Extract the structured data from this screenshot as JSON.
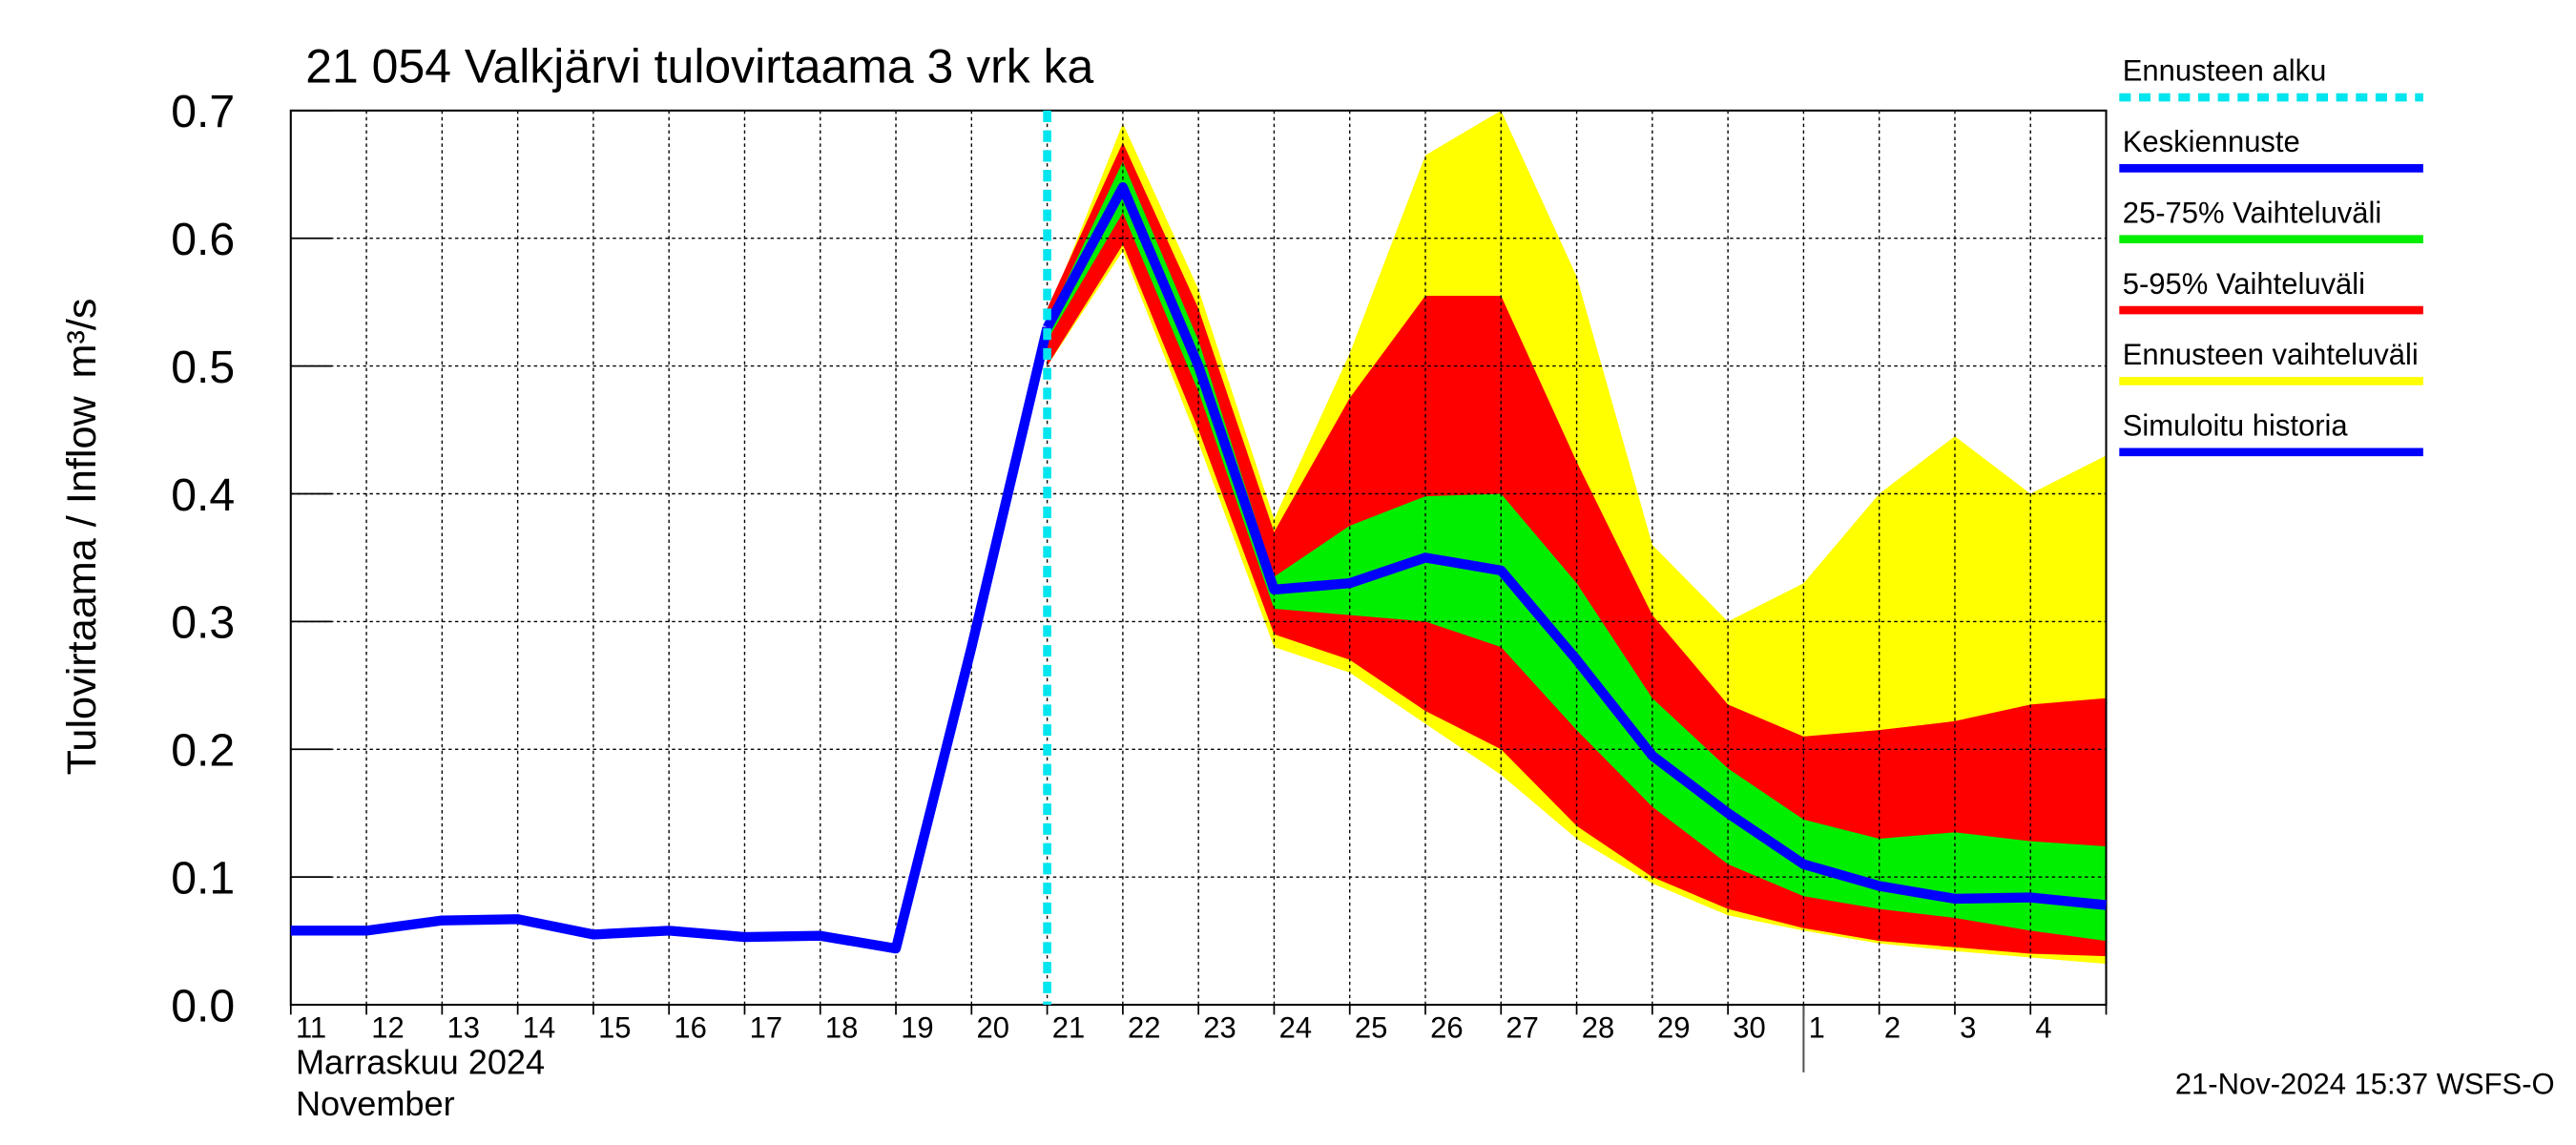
{
  "chart_data": {
    "type": "band",
    "title": "21 054 Valkjärvi tulovirtaama 3 vrk ka",
    "y_label": "Tulovirtaama / Inflow",
    "y_unit": "m³/s",
    "month_label": "Marraskuu 2024",
    "month_label_en": "November",
    "footer": "21-Nov-2024 15:37 WSFS-O",
    "x": [
      "2024-11-11",
      "2024-11-12",
      "2024-11-13",
      "2024-11-14",
      "2024-11-15",
      "2024-11-16",
      "2024-11-17",
      "2024-11-18",
      "2024-11-19",
      "2024-11-20",
      "2024-11-21",
      "2024-11-22",
      "2024-11-23",
      "2024-11-24",
      "2024-11-25",
      "2024-11-26",
      "2024-11-27",
      "2024-11-28",
      "2024-11-29",
      "2024-11-30",
      "2024-12-01",
      "2024-12-02",
      "2024-12-03",
      "2024-12-04",
      "2024-12-05"
    ],
    "xtick_labels": [
      "11",
      "12",
      "13",
      "14",
      "15",
      "16",
      "17",
      "18",
      "19",
      "20",
      "21",
      "22",
      "23",
      "24",
      "25",
      "26",
      "27",
      "28",
      "29",
      "30",
      "1",
      "2",
      "3",
      "4"
    ],
    "xlim": [
      "2024-11-11",
      "2024-12-05"
    ],
    "month_separator": "2024-12-01",
    "forecast_start": {
      "name": "Ennusteen alku",
      "color": "#00e5ee",
      "x": "2024-11-21"
    },
    "ylim": [
      0,
      0.7
    ],
    "yticks": [
      {
        "value": 0,
        "label": "0.0"
      },
      0.1,
      0.2,
      0.3,
      0.4,
      0.5,
      0.6,
      0.7
    ],
    "grid": true,
    "legend": "right",
    "bands": [
      {
        "name": "Ennusteen vaihteluväli",
        "color": "#ffff00",
        "upper": [
          null,
          null,
          null,
          null,
          null,
          null,
          null,
          null,
          null,
          null,
          0.54,
          0.69,
          0.56,
          0.38,
          0.51,
          0.665,
          0.7,
          0.57,
          0.36,
          0.3,
          0.33,
          0.4,
          0.445,
          0.4,
          0.43
        ],
        "lower": [
          null,
          null,
          null,
          null,
          null,
          null,
          null,
          null,
          null,
          null,
          0.5,
          0.59,
          0.44,
          0.28,
          0.26,
          0.22,
          0.18,
          0.13,
          0.095,
          0.07,
          0.058,
          0.048,
          0.042,
          0.037,
          0.032
        ]
      },
      {
        "name": "5-95% Vaihteluväli",
        "color": "#ff0000",
        "upper": [
          null,
          null,
          null,
          null,
          null,
          null,
          null,
          null,
          null,
          null,
          0.545,
          0.675,
          0.545,
          0.37,
          0.475,
          0.555,
          0.555,
          0.425,
          0.305,
          0.235,
          0.21,
          0.215,
          0.222,
          0.235,
          0.24
        ],
        "lower": [
          null,
          null,
          null,
          null,
          null,
          null,
          null,
          null,
          null,
          null,
          0.5,
          0.595,
          0.45,
          0.29,
          0.27,
          0.23,
          0.2,
          0.14,
          0.1,
          0.075,
          0.06,
          0.05,
          0.045,
          0.04,
          0.038
        ]
      },
      {
        "name": "25-75% Vaihteluväli",
        "color": "#00ee00",
        "upper": [
          null,
          null,
          null,
          null,
          null,
          null,
          null,
          null,
          null,
          null,
          0.535,
          0.66,
          0.52,
          0.335,
          0.375,
          0.398,
          0.4,
          0.33,
          0.24,
          0.185,
          0.145,
          0.13,
          0.135,
          0.128,
          0.124
        ],
        "lower": [
          null,
          null,
          null,
          null,
          null,
          null,
          null,
          null,
          null,
          null,
          0.52,
          0.62,
          0.48,
          0.31,
          0.305,
          0.3,
          0.28,
          0.215,
          0.155,
          0.11,
          0.085,
          0.075,
          0.068,
          0.058,
          0.05
        ]
      }
    ],
    "series": [
      {
        "name": "Keskiennuste",
        "color": "#0000ff",
        "values": [
          null,
          null,
          null,
          null,
          null,
          null,
          null,
          null,
          null,
          null,
          0.53,
          0.64,
          0.5,
          0.325,
          0.33,
          0.35,
          0.34,
          0.27,
          0.195,
          0.15,
          0.11,
          0.093,
          0.083,
          0.084,
          0.078
        ]
      },
      {
        "name": "Simuloitu historia",
        "color": "#0000ff",
        "values": [
          0.058,
          0.058,
          0.066,
          0.067,
          0.055,
          0.058,
          0.053,
          0.054,
          0.044,
          0.28,
          0.53,
          null,
          null,
          null,
          null,
          null,
          null,
          null,
          null,
          null,
          null,
          null,
          null,
          null,
          null
        ]
      }
    ],
    "legend_order": [
      "forecast_start",
      "series.0",
      "bands.2",
      "bands.1",
      "bands.0",
      "series.1"
    ]
  }
}
